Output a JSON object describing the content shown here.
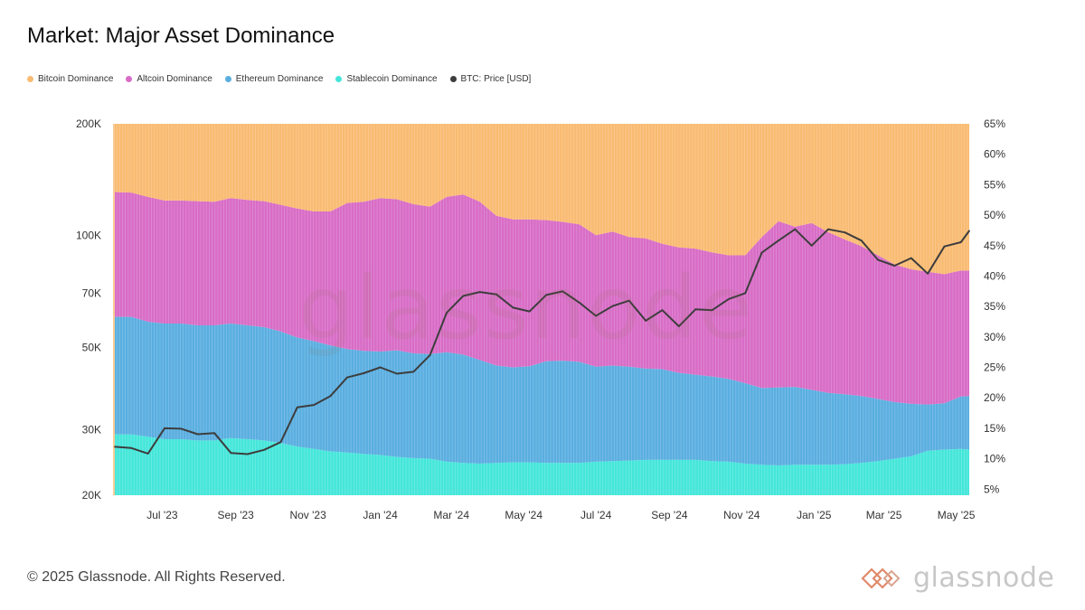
{
  "title": "Market: Major Asset Dominance",
  "footer": "© 2025 Glassnode. All Rights Reserved.",
  "brand_name": "glassnode",
  "watermark_text": "glassnode",
  "colors": {
    "bitcoin": "#f9bb72",
    "altcoin": "#d86cc6",
    "ethereum": "#5aaee0",
    "stablecoin": "#45e6da",
    "btc_price": "#3d3d3d",
    "brand_accent": "#e08a6a"
  },
  "legend": [
    {
      "label": "Bitcoin Dominance",
      "color": "#f9bb72"
    },
    {
      "label": "Altcoin Dominance",
      "color": "#d86cc6"
    },
    {
      "label": "Ethereum Dominance",
      "color": "#5aaee0"
    },
    {
      "label": "Stablecoin Dominance",
      "color": "#45e6da"
    },
    {
      "label": "BTC: Price [USD]",
      "color": "#3d3d3d"
    }
  ],
  "chart_data": {
    "type": "area",
    "x_dates": [
      "2023-05-22",
      "2023-06-05",
      "2023-06-19",
      "2023-07-03",
      "2023-07-17",
      "2023-07-31",
      "2023-08-14",
      "2023-08-28",
      "2023-09-11",
      "2023-09-25",
      "2023-10-09",
      "2023-10-23",
      "2023-11-06",
      "2023-11-20",
      "2023-12-04",
      "2023-12-18",
      "2024-01-01",
      "2024-01-15",
      "2024-01-29",
      "2024-02-12",
      "2024-02-26",
      "2024-03-11",
      "2024-03-25",
      "2024-04-08",
      "2024-04-22",
      "2024-05-06",
      "2024-05-20",
      "2024-06-03",
      "2024-06-17",
      "2024-07-01",
      "2024-07-15",
      "2024-07-29",
      "2024-08-12",
      "2024-08-26",
      "2024-09-09",
      "2024-09-23",
      "2024-10-07",
      "2024-10-21",
      "2024-11-04",
      "2024-11-18",
      "2024-12-02",
      "2024-12-16",
      "2024-12-30",
      "2025-01-13",
      "2025-01-27",
      "2025-02-10",
      "2025-02-24",
      "2025-03-10",
      "2025-03-24",
      "2025-04-07",
      "2025-04-21",
      "2025-05-05",
      "2025-05-12"
    ],
    "xtick_labels": [
      "Jul '23",
      "Sep '23",
      "Nov '23",
      "Jan '24",
      "Mar '24",
      "May '24",
      "Jul '24",
      "Sep '24",
      "Nov '24",
      "Jan '25",
      "Mar '25",
      "May '25"
    ],
    "xtick_dates": [
      "2023-07-01",
      "2023-09-01",
      "2023-11-01",
      "2024-01-01",
      "2024-03-01",
      "2024-05-01",
      "2024-07-01",
      "2024-09-01",
      "2024-11-01",
      "2025-01-01",
      "2025-03-01",
      "2025-05-01"
    ],
    "stacked_series": [
      {
        "name": "Stablecoin Dominance",
        "values": [
          10.0,
          10.0,
          9.6,
          9.2,
          9.2,
          9.0,
          9.0,
          9.4,
          9.2,
          9.0,
          8.6,
          8.0,
          7.6,
          7.2,
          7.0,
          6.8,
          6.6,
          6.3,
          6.1,
          6.0,
          5.5,
          5.3,
          5.2,
          5.3,
          5.4,
          5.4,
          5.3,
          5.3,
          5.3,
          5.5,
          5.6,
          5.7,
          5.8,
          5.8,
          5.8,
          5.8,
          5.6,
          5.5,
          5.2,
          5.0,
          4.9,
          5.0,
          5.0,
          5.0,
          5.1,
          5.3,
          5.6,
          6.0,
          6.4,
          7.3,
          7.5,
          7.6,
          7.5
        ]
      },
      {
        "name": "Ethereum Dominance",
        "values": [
          19.3,
          19.3,
          18.9,
          19.0,
          19.0,
          18.9,
          18.9,
          18.8,
          18.7,
          18.6,
          18.3,
          17.9,
          17.7,
          17.4,
          17.0,
          16.9,
          17.0,
          17.5,
          17.2,
          17.2,
          18.0,
          17.8,
          17.0,
          16.0,
          15.6,
          15.8,
          16.7,
          16.8,
          16.6,
          15.6,
          15.7,
          15.4,
          15.0,
          14.9,
          14.3,
          14.0,
          13.9,
          13.6,
          13.2,
          12.6,
          12.8,
          12.8,
          12.3,
          11.8,
          11.5,
          11.0,
          10.2,
          9.3,
          8.6,
          7.6,
          7.6,
          8.6,
          8.8
        ]
      },
      {
        "name": "Altcoin Dominance",
        "values": [
          20.5,
          20.4,
          20.5,
          20.2,
          20.2,
          20.4,
          20.3,
          20.6,
          20.6,
          20.7,
          20.8,
          21.2,
          21.3,
          22.0,
          24.0,
          24.5,
          25.2,
          24.8,
          24.5,
          24.2,
          25.5,
          26.3,
          26.0,
          24.6,
          24.3,
          24.1,
          23.2,
          22.8,
          22.6,
          21.6,
          22.0,
          21.3,
          21.4,
          20.6,
          20.6,
          20.7,
          20.4,
          20.3,
          21.0,
          24.8,
          27.3,
          26.3,
          27.4,
          26.4,
          25.4,
          24.6,
          23.6,
          22.6,
          22.1,
          21.8,
          21.2,
          20.7,
          20.6
        ]
      },
      {
        "name": "Bitcoin Dominance",
        "values": [
          46.0,
          46.2,
          46.8,
          49.5,
          50.1,
          49.8,
          49.9,
          49.9,
          50.2,
          50.8,
          51.7,
          52.6,
          53.6,
          53.8,
          53.2,
          53.3,
          52.9,
          53.1,
          53.8,
          54.0,
          52.3,
          52.5,
          53.8,
          55.2,
          55.3,
          55.2,
          54.9,
          55.3,
          55.7,
          56.9,
          56.6,
          57.8,
          58.1,
          58.9,
          59.4,
          59.9,
          60.3,
          60.8,
          61.0,
          58.0,
          55.9,
          57.6,
          56.5,
          58.9,
          59.4,
          61.5,
          62.2,
          62.7,
          63.1,
          63.5,
          64.3,
          64.9,
          64.2
        ]
      }
    ],
    "line_series": {
      "name": "BTC: Price [USD]",
      "values": [
        27000,
        26800,
        25900,
        30300,
        30200,
        29200,
        29400,
        26000,
        25800,
        26500,
        27800,
        34500,
        35000,
        37000,
        41500,
        42600,
        44200,
        42500,
        43000,
        47700,
        62000,
        68800,
        70500,
        69500,
        64000,
        62500,
        69200,
        70800,
        66000,
        60800,
        64600,
        66800,
        59000,
        63000,
        57000,
        63300,
        63000,
        67500,
        70000,
        90000,
        97000,
        104000,
        94000,
        104000,
        102000,
        97000,
        86000,
        83000,
        87000,
        79000,
        93500,
        96000,
        103000
      ]
    },
    "y_left": {
      "scale": "log",
      "range": [
        20000,
        200000
      ],
      "ticks": [
        20000,
        30000,
        50000,
        70000,
        100000,
        200000
      ],
      "tick_labels": [
        "20K",
        "30K",
        "50K",
        "70K",
        "100K",
        "200K"
      ]
    },
    "y_right": {
      "scale": "linear",
      "unit": "%",
      "range": [
        4,
        65
      ],
      "ticks": [
        5,
        10,
        15,
        20,
        25,
        30,
        35,
        40,
        45,
        50,
        55,
        60,
        65
      ],
      "tick_labels": [
        "5%",
        "10%",
        "15%",
        "20%",
        "25%",
        "30%",
        "35%",
        "40%",
        "45%",
        "50%",
        "55%",
        "60%",
        "65%"
      ]
    },
    "grid": false,
    "legend_position": "top-left"
  }
}
